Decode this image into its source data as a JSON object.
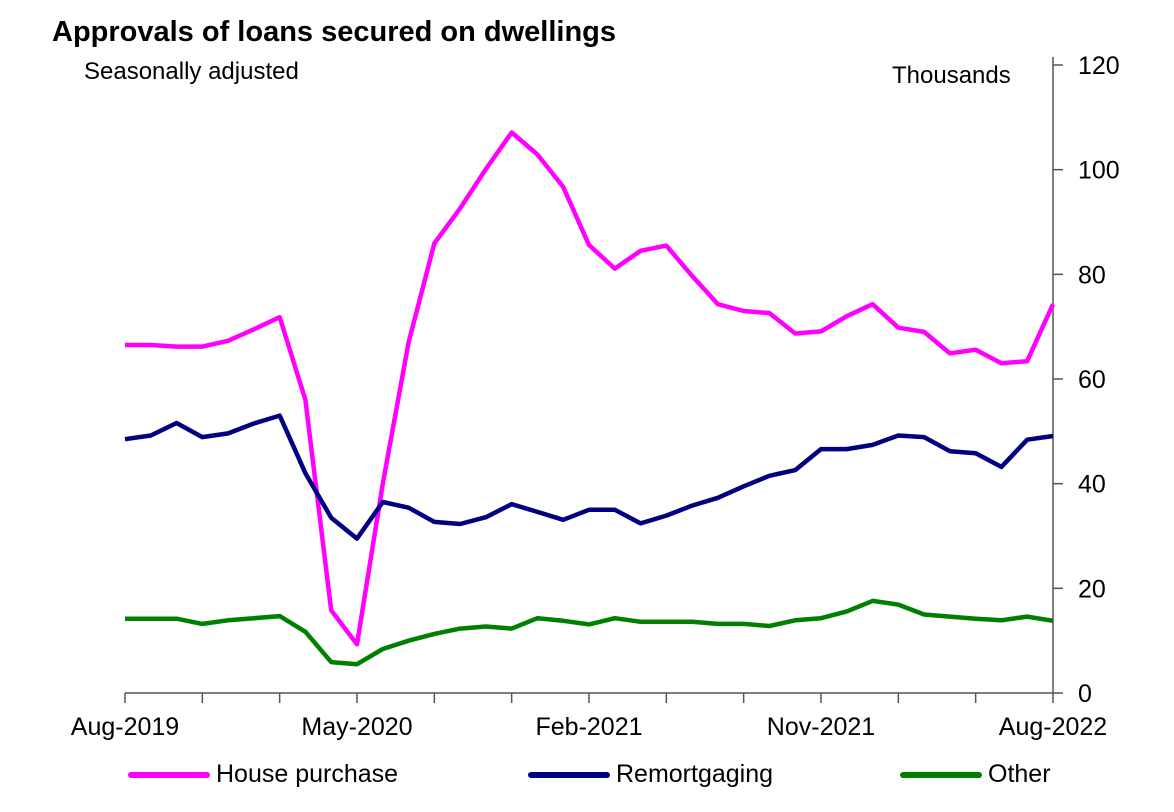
{
  "chart_data": {
    "type": "line",
    "title": "Approvals of loans secured on dwellings",
    "subtitle": "Seasonally adjusted",
    "ylabel": "Thousands",
    "xlabel": "",
    "ylim": [
      0,
      120
    ],
    "yticks": [
      0,
      20,
      40,
      60,
      80,
      100,
      120
    ],
    "x_start": "Aug-2019",
    "x_end": "Aug-2022",
    "n_points": 37,
    "x_tick_every_months": 3,
    "x_tick_labels": [
      {
        "label": "Aug-2019",
        "index": 0
      },
      {
        "label": "May-2020",
        "index": 9
      },
      {
        "label": "Feb-2021",
        "index": 18
      },
      {
        "label": "Nov-2021",
        "index": 27
      },
      {
        "label": "Aug-2022",
        "index": 36
      }
    ],
    "grid": false,
    "legend_position": "bottom",
    "series": [
      {
        "name": "House purchase",
        "color": "#ff00ff",
        "values": [
          66.5,
          66.5,
          66.2,
          66.2,
          67.3,
          69.5,
          71.8,
          56.0,
          15.8,
          9.3,
          40.0,
          67.0,
          85.9,
          92.6,
          100.1,
          107.1,
          102.9,
          96.7,
          85.6,
          81.1,
          84.5,
          85.5,
          79.7,
          74.3,
          73.0,
          72.6,
          68.7,
          69.1,
          72.0,
          74.3,
          69.8,
          69.0,
          64.9,
          65.6,
          63.0,
          63.4,
          74.3
        ]
      },
      {
        "name": "Remortgaging",
        "color": "#000080",
        "values": [
          48.5,
          49.2,
          51.6,
          48.9,
          49.6,
          51.5,
          53.0,
          42.0,
          33.5,
          29.5,
          36.5,
          35.4,
          32.7,
          32.3,
          33.6,
          36.1,
          34.6,
          33.1,
          35.0,
          35.0,
          32.4,
          33.9,
          35.8,
          37.3,
          39.5,
          41.5,
          42.6,
          46.6,
          46.6,
          47.4,
          49.2,
          48.9,
          46.2,
          45.8,
          43.2,
          48.4,
          49.1
        ]
      },
      {
        "name": "Other",
        "color": "#008000",
        "values": [
          14.2,
          14.2,
          14.2,
          13.2,
          13.9,
          14.3,
          14.7,
          11.7,
          5.9,
          5.5,
          8.4,
          10.0,
          11.3,
          12.3,
          12.7,
          12.3,
          14.3,
          13.8,
          13.1,
          14.3,
          13.6,
          13.6,
          13.6,
          13.2,
          13.2,
          12.8,
          13.9,
          14.3,
          15.6,
          17.6,
          16.9,
          15.0,
          14.6,
          14.2,
          13.9,
          14.6,
          13.8
        ]
      }
    ]
  }
}
